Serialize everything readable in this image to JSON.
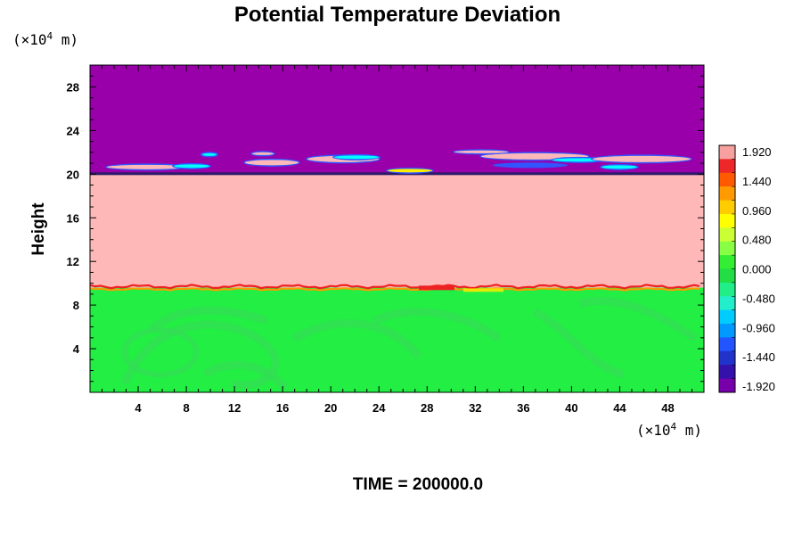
{
  "chart_data": {
    "type": "heatmap",
    "title": "Potential Temperature Deviation",
    "ylabel": "Height",
    "y_unit": "(×10",
    "x_unit": "(×10",
    "unit_exponent": "4",
    "unit_suffix": " m)",
    "footer": "TIME = 200000.0",
    "xlim": [
      0,
      51
    ],
    "ylim": [
      0,
      30
    ],
    "x_ticks": [
      "4",
      "8",
      "12",
      "16",
      "20",
      "24",
      "28",
      "32",
      "36",
      "40",
      "44",
      "48"
    ],
    "y_ticks": [
      "4",
      "8",
      "12",
      "16",
      "20",
      "24",
      "28"
    ],
    "colorbar_labels": [
      "1.920",
      "1.440",
      "0.960",
      "0.480",
      "0.000",
      "-0.480",
      "-0.960",
      "-1.440",
      "-1.920"
    ],
    "colorbar_range": [
      -1.92,
      1.92
    ],
    "bands": [
      {
        "ymin": 0,
        "ymax": 9.6,
        "value": 0.1,
        "desc": "lower layer"
      },
      {
        "ymin": 9.6,
        "ymax": 20,
        "value": 1.92,
        "desc": "middle layer"
      },
      {
        "ymin": 20,
        "ymax": 30,
        "value": -1.92,
        "desc": "upper layer"
      }
    ],
    "colors": {
      "upper": "#9900aa",
      "middle": "#ffb8b8",
      "lower": "#22ee44",
      "lower_light": "#33dd55",
      "interface": "#ee2222",
      "interface_yellow": "#ffee00",
      "cyan": "#00ffff",
      "blue": "#3355ff"
    }
  }
}
